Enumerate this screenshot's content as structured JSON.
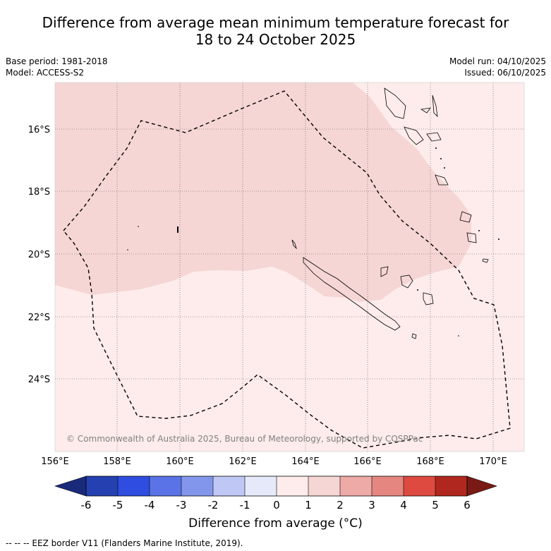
{
  "title": {
    "line1": "Difference from average mean minimum temperature forecast for",
    "line2": "18 to 24 October 2025"
  },
  "meta": {
    "base_period": "Base period: 1981-2018",
    "model": "Model: ACCESS-S2",
    "model_run": "Model run: 04/10/2025",
    "issued": "Issued: 06/10/2025"
  },
  "map": {
    "lat_labels": [
      "16°S",
      "18°S",
      "20°S",
      "22°S",
      "24°S"
    ],
    "lon_labels": [
      "156°E",
      "158°E",
      "160°E",
      "162°E",
      "164°E",
      "166°E",
      "168°E",
      "170°E"
    ],
    "copyright": "© Commonwealth of Australia 2025, Bureau of Meteorology, supported by COSPPac",
    "colors": {
      "anomaly_0_1": "#fdeceb",
      "anomaly_1_2": "#f5d6d5",
      "eez": "#000000"
    }
  },
  "colorbar": {
    "title": "Difference from average (°C)",
    "ticks": [
      "-6",
      "-5",
      "-4",
      "-3",
      "-2",
      "-1",
      "0",
      "1",
      "2",
      "3",
      "4",
      "5",
      "6"
    ],
    "colors": [
      "#1a2a7a",
      "#2540b0",
      "#2f4de0",
      "#5a74e8",
      "#8297ec",
      "#bfc7f4",
      "#e6e9fa",
      "#fdeceb",
      "#f5d6d5",
      "#eeaaa6",
      "#e58680",
      "#de4a40",
      "#b0271f",
      "#7a1a14"
    ]
  },
  "legend": {
    "eez": "-- -- -- EEZ border V11 (Flanders Marine Institute, 2019)."
  }
}
